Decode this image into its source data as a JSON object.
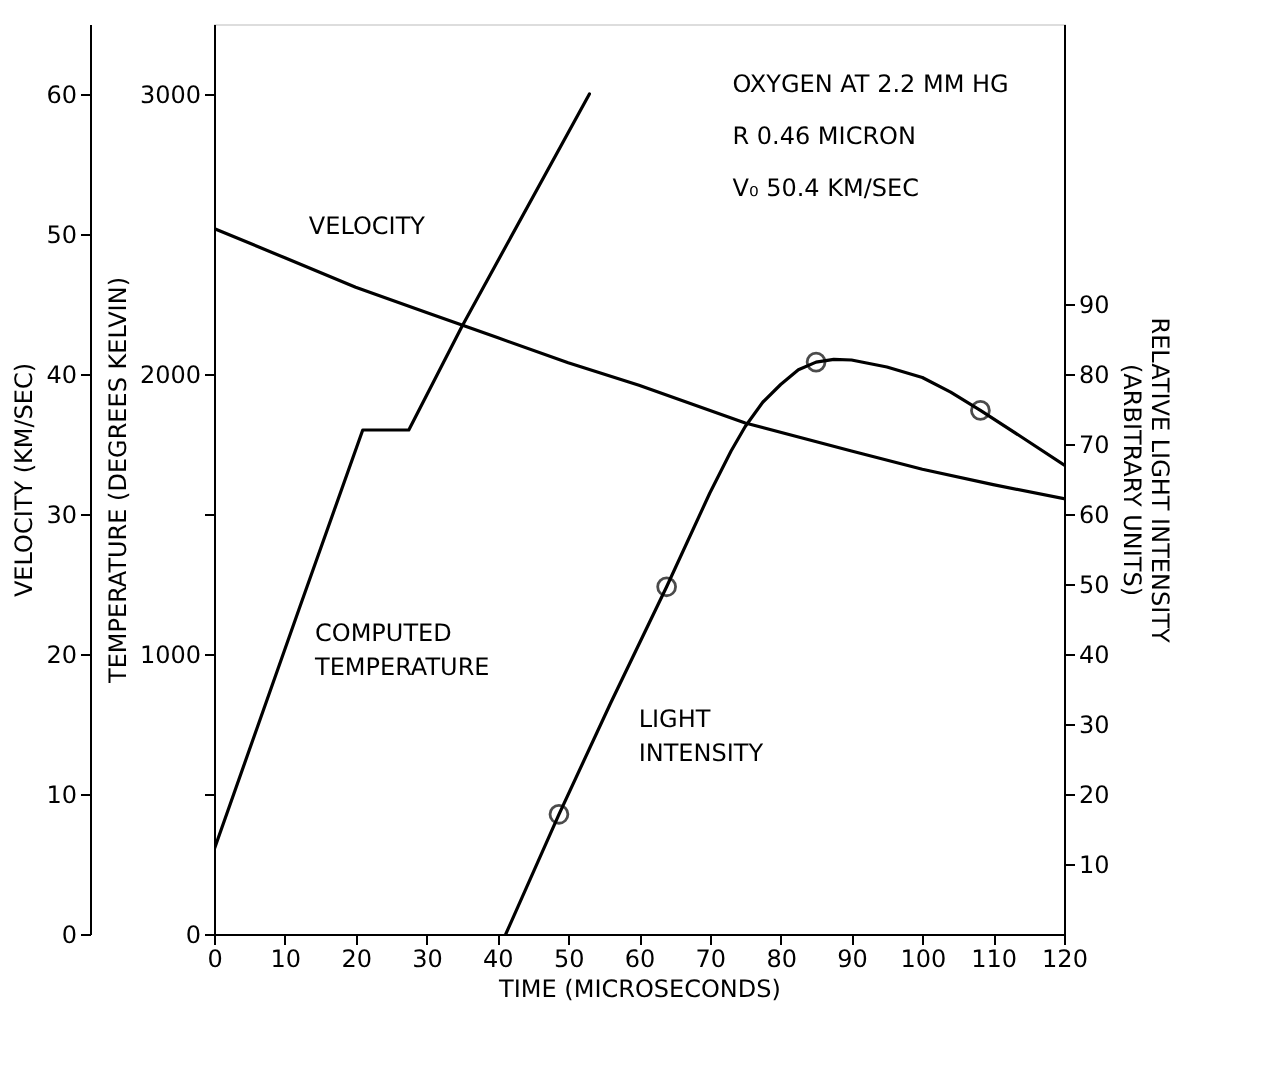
{
  "chart_data": {
    "type": "line",
    "xlabel": "TIME (MICROSECONDS)",
    "ylabel": "TEMPERATURE (DEGREES KELVIN)",
    "y2label": "RELATIVE LIGHT INTENSITY (ARBITRARY UNITS)",
    "y3label": "VELOCITY (KM/SEC)",
    "xlim": [
      0,
      120
    ],
    "xticks": [
      0,
      10,
      20,
      30,
      40,
      50,
      60,
      70,
      80,
      90,
      100,
      110,
      120
    ],
    "ylim": [
      0,
      3250
    ],
    "yticks": [
      0,
      {
        "value": 500,
        "label": null
      },
      1000,
      {
        "value": 1500,
        "label": null
      },
      2000,
      3000
    ],
    "y2lim": [
      0,
      130
    ],
    "y2ticks": [
      10,
      20,
      30,
      40,
      50,
      60,
      70,
      80,
      90
    ],
    "y3lim": [
      0,
      65
    ],
    "y3ticks": [
      0,
      10,
      20,
      30,
      40,
      50,
      60
    ],
    "grid": false,
    "legend": false,
    "marker": "none",
    "line_style": "solid",
    "series": [
      {
        "name": "VELOCITY",
        "color": "#000000",
        "axis": "y3",
        "x": [
          0,
          10,
          20,
          30,
          35,
          40,
          50,
          60,
          75,
          90,
          100,
          110,
          120
        ],
        "values": [
          50.4,
          48.3,
          46.2,
          44.4,
          43.5,
          42.6,
          40.8,
          39.2,
          36.5,
          34.5,
          33.2,
          32.1,
          31.1
        ]
      },
      {
        "name": "COMPUTED TEMPERATURE",
        "color": "#000000",
        "x": [
          0,
          12,
          21,
          27.5,
          35,
          53
        ],
        "values": [
          300,
          1160,
          1800,
          1800,
          2170,
          3000
        ]
      },
      {
        "name": "LIGHT INTENSITY",
        "color": "#000000",
        "axis": "y2",
        "x": [
          41.2,
          48.7,
          56,
          63.9,
          70,
          73,
          75,
          77.5,
          80,
          82.5,
          85,
          87.5,
          90,
          95,
          100,
          104,
          108.2,
          114,
          120
        ],
        "values": [
          0,
          17.1,
          33,
          49.6,
          63,
          69,
          72.5,
          76,
          78.5,
          80.6,
          81.7,
          82.1,
          82,
          81,
          79.5,
          77.4,
          74.8,
          71,
          67
        ]
      },
      {
        "type": "scatter",
        "marker": "circle",
        "color": "#000000",
        "axis": "y2",
        "x": [
          48.7,
          63.9,
          85,
          108.2
        ],
        "values": [
          17.1,
          49.6,
          81.7,
          74.8
        ]
      }
    ],
    "annotations": [
      "OXYGEN AT 2.2 MM HG",
      "R 0.46 MICRON",
      "V₀ 50.4 KM/SEC"
    ]
  }
}
